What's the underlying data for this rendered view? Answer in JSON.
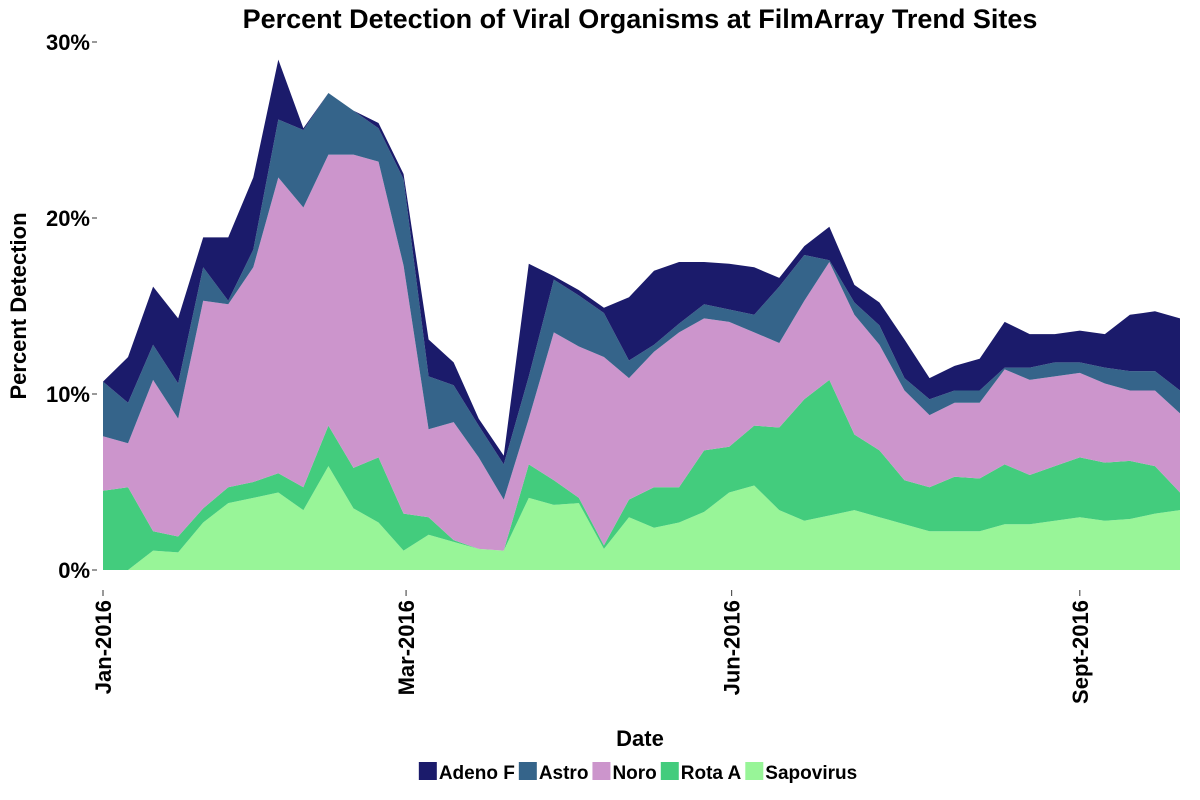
{
  "chart_data": {
    "type": "stacked_area",
    "title": "Percent Detection of Viral Organisms at FilmArray Trend Sites",
    "x_label": "Date",
    "y_label": "Percent Detection",
    "x": [
      0,
      1,
      2,
      3,
      4,
      5,
      6,
      7,
      8,
      9,
      10,
      11,
      12,
      13,
      14,
      15,
      16,
      17,
      18,
      19,
      20,
      21,
      22,
      23,
      24,
      25,
      26,
      27,
      28,
      29,
      30,
      31,
      32,
      33,
      34,
      35,
      36,
      37,
      38,
      39,
      40,
      41,
      42,
      43
    ],
    "xlim": [
      0,
      43
    ],
    "xticks": [
      {
        "value": 0,
        "label": "Jan-2016"
      },
      {
        "value": 12.1,
        "label": "Mar-2016"
      },
      {
        "value": 25.1,
        "label": "Jun-2016"
      },
      {
        "value": 39,
        "label": "Sept-2016"
      }
    ],
    "ylim": [
      0,
      30
    ],
    "yticks": [
      {
        "value": 0,
        "label": "0%"
      },
      {
        "value": 10,
        "label": "10%"
      },
      {
        "value": 20,
        "label": "20%"
      },
      {
        "value": 30,
        "label": "30%"
      }
    ],
    "grid": false,
    "legend": "bottom",
    "series": [
      {
        "name": "Adeno F",
        "color": "#1b1b6b",
        "values": [
          0,
          2.6,
          3.3,
          3.7,
          1.7,
          3.6,
          4.1,
          3.4,
          0.1,
          0,
          0,
          0.3,
          0.3,
          2.1,
          1.3,
          0.4,
          0.5,
          6.4,
          0.2,
          0.3,
          0.3,
          3.6,
          4.2,
          3.5,
          2.4,
          2.6,
          2.7,
          0.5,
          0.5,
          1.9,
          1.0,
          1.3,
          2.2,
          1.2,
          1.4,
          1.8,
          2.6,
          1.9,
          1.6,
          1.8,
          1.9,
          3.2,
          3.4,
          4.1
        ]
      },
      {
        "name": "Astro",
        "color": "#35648a",
        "values": [
          3.1,
          2.3,
          2.0,
          2.0,
          1.9,
          0.2,
          1.0,
          3.3,
          4.4,
          3.5,
          2.5,
          1.9,
          4.9,
          3.0,
          2.1,
          1.8,
          2.0,
          2.4,
          3.0,
          2.9,
          2.5,
          1.0,
          0.4,
          0.5,
          0.8,
          0.7,
          1.0,
          3.2,
          2.6,
          0.1,
          0.7,
          1.1,
          0.7,
          0.9,
          0.7,
          0.7,
          0.1,
          0.7,
          0.8,
          0.6,
          0.9,
          1.1,
          1.1,
          1.3
        ]
      },
      {
        "name": "Noro",
        "color": "#cc95cc",
        "values": [
          3.1,
          2.5,
          8.6,
          6.7,
          11.8,
          10.4,
          12.2,
          16.8,
          15.9,
          15.4,
          17.8,
          16.8,
          14.1,
          5.0,
          6.7,
          5.2,
          2.9,
          2.6,
          8.4,
          8.6,
          10.7,
          6.9,
          7.7,
          8.8,
          7.5,
          7.1,
          5.3,
          4.8,
          5.6,
          6.7,
          6.8,
          6.0,
          5.1,
          4.1,
          4.2,
          4.3,
          5.4,
          5.4,
          5.1,
          4.8,
          4.5,
          4.0,
          4.3,
          4.5
        ]
      },
      {
        "name": "Rota A",
        "color": "#43cc7d",
        "values": [
          4.5,
          4.7,
          1.1,
          0.9,
          0.8,
          0.9,
          0.9,
          1.1,
          1.3,
          2.3,
          2.3,
          3.7,
          2.1,
          1.0,
          0.1,
          0,
          0,
          1.9,
          1.4,
          0.3,
          0.2,
          1.0,
          2.3,
          2.0,
          3.5,
          2.6,
          3.4,
          4.7,
          6.9,
          7.7,
          4.3,
          3.8,
          2.5,
          2.5,
          3.1,
          3.0,
          3.4,
          2.8,
          3.1,
          3.4,
          3.3,
          3.3,
          2.7,
          1.0
        ]
      },
      {
        "name": "Sapovirus",
        "color": "#98f598",
        "values": [
          0,
          0,
          1.1,
          1.0,
          2.7,
          3.8,
          4.1,
          4.4,
          3.4,
          5.9,
          3.5,
          2.7,
          1.1,
          2.0,
          1.6,
          1.2,
          1.1,
          4.1,
          3.7,
          3.8,
          1.2,
          3.0,
          2.4,
          2.7,
          3.3,
          4.4,
          4.8,
          3.4,
          2.8,
          3.1,
          3.4,
          3.0,
          2.6,
          2.2,
          2.2,
          2.2,
          2.6,
          2.6,
          2.8,
          3.0,
          2.8,
          2.9,
          3.2,
          3.4
        ]
      }
    ]
  }
}
